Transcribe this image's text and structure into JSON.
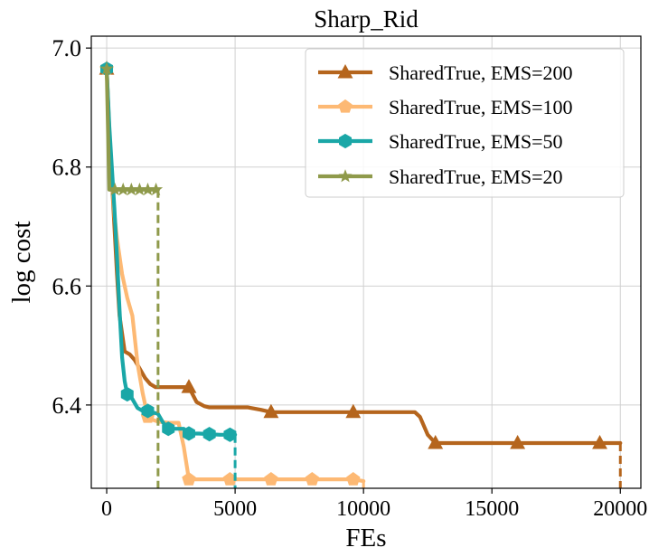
{
  "chart_data": {
    "type": "line",
    "title": "Sharp_Rid",
    "xlabel": "FEs",
    "ylabel": "log cost",
    "xlim": [
      -600,
      20800
    ],
    "ylim": [
      6.26,
      7.02
    ],
    "xticks": [
      0,
      5000,
      10000,
      15000,
      20000
    ],
    "xtick_labels": [
      "0",
      "5000",
      "10000",
      "15000",
      "20000"
    ],
    "yticks": [
      6.4,
      6.6,
      6.8,
      7.0
    ],
    "ytick_labels": [
      "6.4",
      "6.6",
      "6.8",
      "7.0"
    ],
    "grid": true,
    "legend_position": "top-right",
    "series": [
      {
        "name": "SharedTrue, EMS=200",
        "color": "#b5651d",
        "marker": "triangle",
        "end_drop": 20000,
        "x": [
          0,
          100,
          200,
          300,
          400,
          500,
          700,
          900,
          1100,
          1300,
          1500,
          1700,
          1900,
          2100,
          2500,
          3000,
          3200,
          3500,
          3800,
          4000,
          4500,
          5000,
          5500,
          6000,
          6400,
          7000,
          8000,
          9000,
          9600,
          10000,
          11000,
          12000,
          12200,
          12500,
          12800,
          14000,
          16000,
          18000,
          19200,
          20000
        ],
        "y": [
          6.965,
          6.86,
          6.78,
          6.7,
          6.62,
          6.55,
          6.49,
          6.485,
          6.475,
          6.46,
          6.445,
          6.435,
          6.43,
          6.43,
          6.43,
          6.43,
          6.43,
          6.405,
          6.398,
          6.396,
          6.396,
          6.396,
          6.396,
          6.392,
          6.388,
          6.388,
          6.388,
          6.388,
          6.388,
          6.388,
          6.388,
          6.388,
          6.38,
          6.35,
          6.336,
          6.336,
          6.336,
          6.336,
          6.336,
          6.336
        ],
        "marker_x": [
          0,
          3200,
          6400,
          9600,
          12800,
          16000,
          19200
        ]
      },
      {
        "name": "SharedTrue, EMS=100",
        "color": "#fdb974",
        "marker": "pentagon",
        "end_drop": 10000,
        "x": [
          0,
          100,
          200,
          300,
          400,
          500,
          600,
          800,
          1000,
          1200,
          1400,
          1600,
          1800,
          2000,
          2400,
          2800,
          3000,
          3200,
          3500,
          4000,
          4800,
          5000,
          6000,
          6400,
          7000,
          8000,
          9000,
          9600,
          10000
        ],
        "y": [
          6.965,
          6.86,
          6.78,
          6.72,
          6.68,
          6.65,
          6.62,
          6.58,
          6.55,
          6.47,
          6.42,
          6.38,
          6.375,
          6.372,
          6.37,
          6.37,
          6.33,
          6.275,
          6.275,
          6.275,
          6.275,
          6.275,
          6.275,
          6.275,
          6.275,
          6.275,
          6.275,
          6.275,
          6.272
        ],
        "marker_x": [
          0,
          1600,
          3200,
          4800,
          6400,
          8000,
          9600
        ]
      },
      {
        "name": "SharedTrue, EMS=50",
        "color": "#1aa7a7",
        "marker": "hexagon",
        "end_drop": 5000,
        "x": [
          0,
          100,
          200,
          300,
          400,
          500,
          600,
          700,
          800,
          1000,
          1200,
          1400,
          1600,
          2000,
          2200,
          2400,
          2600,
          3000,
          3200,
          3600,
          4000,
          4400,
          4800,
          5000
        ],
        "y": [
          6.965,
          6.87,
          6.8,
          6.73,
          6.65,
          6.56,
          6.48,
          6.44,
          6.418,
          6.41,
          6.395,
          6.39,
          6.39,
          6.385,
          6.37,
          6.36,
          6.36,
          6.36,
          6.352,
          6.352,
          6.351,
          6.35,
          6.35,
          6.35
        ],
        "marker_x": [
          0,
          800,
          1600,
          2400,
          3200,
          4000,
          4800
        ]
      },
      {
        "name": "SharedTrue, EMS=20",
        "color": "#8f9a4b",
        "marker": "star",
        "end_drop": 2000,
        "x": [
          0,
          100,
          200,
          400,
          600,
          800,
          1000,
          1200,
          1400,
          1600,
          1800,
          2000
        ],
        "y": [
          6.965,
          6.762,
          6.762,
          6.762,
          6.762,
          6.762,
          6.762,
          6.762,
          6.762,
          6.762,
          6.762,
          6.762
        ],
        "marker_x": [
          0,
          320,
          640,
          960,
          1280,
          1600,
          1920
        ]
      }
    ]
  }
}
